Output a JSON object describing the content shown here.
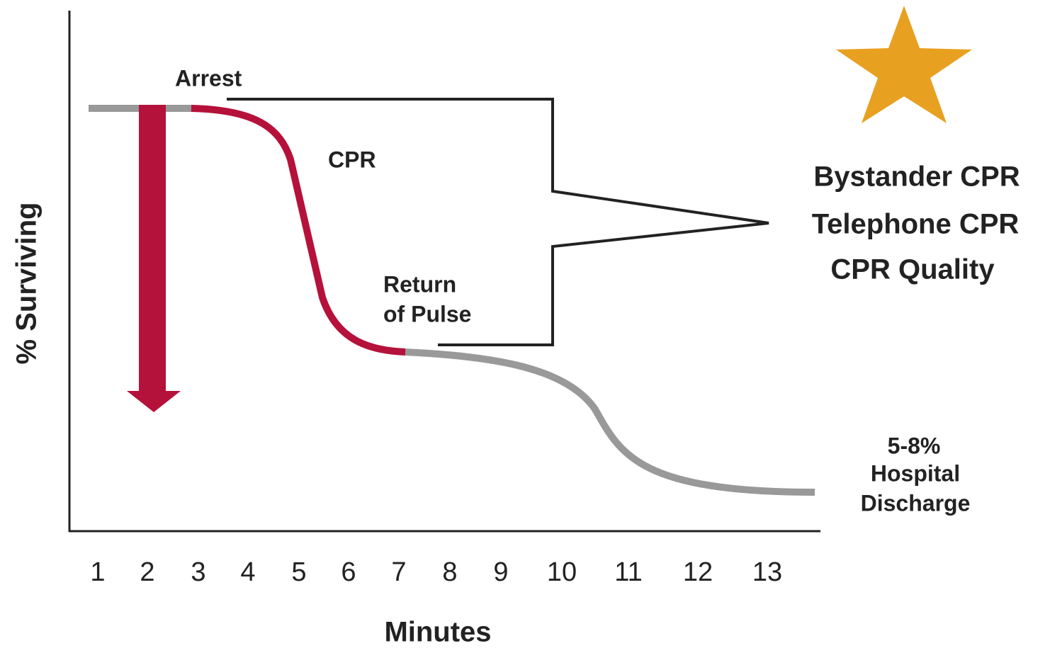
{
  "axes": {
    "y_label": "% Surviving",
    "x_label": "Minutes",
    "x_ticks": [
      "1",
      "2",
      "3",
      "4",
      "5",
      "6",
      "7",
      "8",
      "9",
      "10",
      "11",
      "12",
      "13"
    ]
  },
  "annotations": {
    "arrest": "Arrest",
    "cpr": "CPR",
    "return_of_pulse": [
      "Return",
      "of Pulse"
    ],
    "outcome": [
      "5-8%",
      "Hospital",
      "Discharge"
    ]
  },
  "interventions": [
    "Bystander CPR",
    "Telephone CPR",
    "CPR Quality"
  ]
}
